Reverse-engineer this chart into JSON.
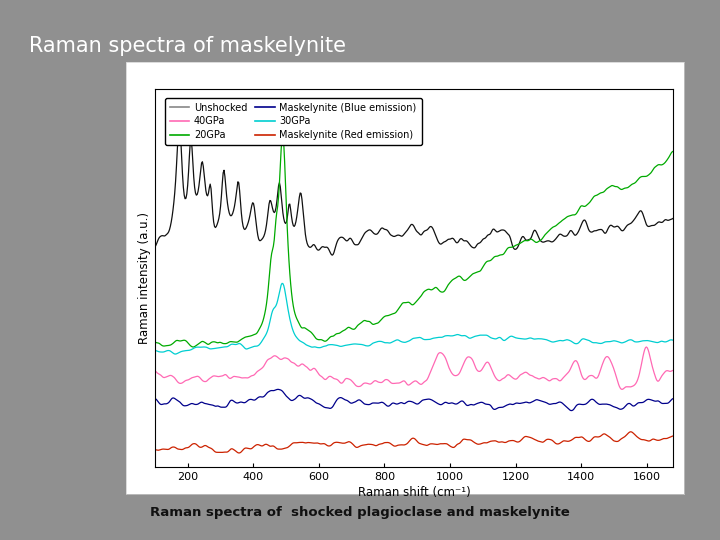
{
  "title": "Raman spectra of maskelynite",
  "subtitle": "Raman spectra of  shocked plagioclase and maskelynite",
  "xlabel": "Raman shift (cm⁻¹)",
  "ylabel": "Raman intensity (a.u.)",
  "xmin": 100,
  "xmax": 1680,
  "background_color": "#909090",
  "plot_bg": "#ffffff",
  "title_color": "#ffffff",
  "subtitle_color": "#111111",
  "legend_entries": [
    {
      "label": "Unshocked",
      "color": "#888888"
    },
    {
      "label": "40GPa",
      "color": "#ff69b4"
    },
    {
      "label": "20GPa",
      "color": "#00aa00"
    },
    {
      "label": "Maskelynite (Blue emission)",
      "color": "#00008b"
    },
    {
      "label": "30GPa",
      "color": "#00ced1"
    },
    {
      "label": "Maskelynite (Red emission)",
      "color": "#cc2200"
    }
  ],
  "plot_line_colors": {
    "Unshocked": "#111111",
    "20GPa": "#00aa00",
    "30GPa": "#00ced1",
    "40GPa": "#ff69b4",
    "Maskelynite (Blue emission)": "#00008b",
    "Maskelynite (Red emission)": "#cc2200"
  }
}
